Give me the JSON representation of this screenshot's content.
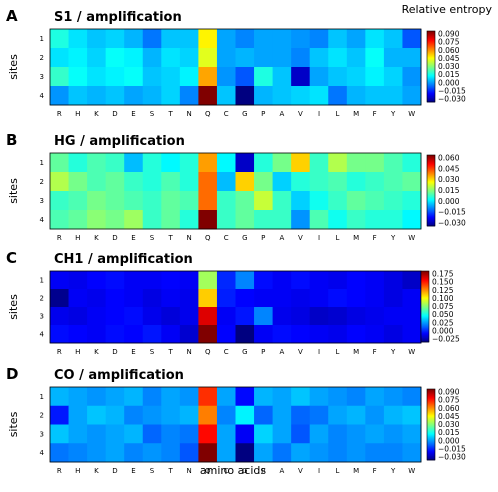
{
  "header": {
    "colorbar_title": "Relative entropy"
  },
  "xlabel": "amino acids",
  "ylabel": "sites",
  "amino_acids": [
    "R",
    "H",
    "K",
    "D",
    "E",
    "S",
    "T",
    "N",
    "Q",
    "C",
    "G",
    "P",
    "A",
    "V",
    "I",
    "L",
    "M",
    "F",
    "Y",
    "W"
  ],
  "sites": [
    "1",
    "2",
    "3",
    "4"
  ],
  "chart_data": [
    {
      "type": "heatmap",
      "letter": "A",
      "title": "S1 / amplification",
      "x": [
        "R",
        "H",
        "K",
        "D",
        "E",
        "S",
        "T",
        "N",
        "Q",
        "C",
        "G",
        "P",
        "A",
        "V",
        "I",
        "L",
        "M",
        "F",
        "Y",
        "W"
      ],
      "y": [
        "1",
        "2",
        "3",
        "4"
      ],
      "vmin": -0.037,
      "vmax": 0.092,
      "colorbar_ticks": [
        "0.090",
        "0.075",
        "0.060",
        "0.045",
        "0.030",
        "0.015",
        "0.000",
        "−0.015",
        "−0.030"
      ],
      "values": [
        [
          0.015,
          0.008,
          0.004,
          0.006,
          0.002,
          -0.006,
          0.004,
          0.004,
          0.045,
          0.0,
          -0.004,
          0.0,
          0.0,
          -0.002,
          -0.004,
          0.004,
          0.0,
          0.008,
          0.004,
          -0.01
        ],
        [
          0.008,
          0.01,
          0.006,
          0.012,
          0.01,
          0.002,
          0.008,
          0.006,
          0.04,
          0.0,
          0.002,
          0.0,
          0.0,
          -0.004,
          0.004,
          0.008,
          0.004,
          0.012,
          0.002,
          0.002
        ],
        [
          0.018,
          0.012,
          0.008,
          0.01,
          0.012,
          0.004,
          0.006,
          0.01,
          0.055,
          -0.002,
          -0.01,
          0.015,
          0.004,
          -0.028,
          0.0,
          0.004,
          0.006,
          0.01,
          0.006,
          -0.002
        ],
        [
          -0.002,
          0.004,
          0.002,
          0.004,
          0.0,
          0.002,
          0.006,
          -0.004,
          0.092,
          0.004,
          -0.037,
          0.002,
          0.004,
          0.006,
          0.008,
          -0.006,
          0.002,
          0.004,
          0.004,
          0.0
        ]
      ]
    },
    {
      "type": "heatmap",
      "letter": "B",
      "title": "HG / amplification",
      "x": [
        "R",
        "H",
        "K",
        "D",
        "E",
        "S",
        "T",
        "N",
        "Q",
        "C",
        "G",
        "P",
        "A",
        "V",
        "I",
        "L",
        "M",
        "F",
        "Y",
        "W"
      ],
      "y": [
        "1",
        "2",
        "3",
        "4"
      ],
      "vmin": -0.037,
      "vmax": 0.063,
      "colorbar_ticks": [
        "0.060",
        "0.045",
        "0.030",
        "0.015",
        "0.000",
        "−0.015",
        "−0.030"
      ],
      "values": [
        [
          0.01,
          0.004,
          0.008,
          0.006,
          -0.006,
          0.004,
          0.0,
          0.004,
          0.035,
          0.0,
          -0.03,
          0.004,
          0.012,
          0.03,
          0.006,
          0.018,
          0.012,
          0.012,
          0.008,
          0.004
        ],
        [
          0.018,
          0.012,
          0.008,
          0.01,
          0.006,
          0.004,
          0.008,
          0.004,
          0.04,
          -0.006,
          0.03,
          0.012,
          -0.004,
          0.004,
          0.006,
          0.008,
          0.004,
          0.006,
          0.008,
          0.01
        ],
        [
          0.006,
          0.008,
          0.012,
          0.01,
          0.008,
          0.006,
          0.01,
          0.008,
          0.04,
          0.006,
          0.01,
          0.02,
          0.006,
          -0.004,
          0.002,
          0.006,
          0.01,
          0.008,
          0.006,
          0.004
        ],
        [
          0.008,
          0.01,
          0.014,
          0.012,
          0.016,
          0.006,
          0.01,
          0.004,
          0.063,
          0.006,
          0.01,
          0.006,
          0.006,
          -0.01,
          0.008,
          0.002,
          0.006,
          0.004,
          0.004,
          0.0
        ]
      ]
    },
    {
      "type": "heatmap",
      "letter": "C",
      "title": "CH1 / amplification",
      "x": [
        "R",
        "H",
        "K",
        "D",
        "E",
        "S",
        "T",
        "N",
        "Q",
        "C",
        "G",
        "P",
        "A",
        "V",
        "I",
        "L",
        "M",
        "F",
        "Y",
        "W"
      ],
      "y": [
        "1",
        "2",
        "3",
        "4"
      ],
      "vmin": -0.035,
      "vmax": 0.18,
      "colorbar_ticks": [
        "0.175",
        "0.150",
        "0.125",
        "0.100",
        "0.075",
        "0.050",
        "0.025",
        "0.000",
        "−0.025"
      ],
      "values": [
        [
          -0.01,
          -0.012,
          -0.008,
          -0.006,
          -0.01,
          -0.01,
          -0.008,
          -0.01,
          0.08,
          0.0,
          0.02,
          -0.006,
          -0.01,
          -0.006,
          -0.01,
          -0.012,
          -0.008,
          -0.01,
          -0.014,
          -0.02
        ],
        [
          -0.032,
          -0.01,
          -0.012,
          -0.008,
          -0.01,
          -0.014,
          -0.01,
          -0.012,
          0.11,
          -0.002,
          -0.008,
          -0.01,
          -0.01,
          -0.012,
          -0.01,
          -0.006,
          -0.008,
          -0.01,
          -0.014,
          -0.01
        ],
        [
          -0.012,
          -0.014,
          -0.01,
          -0.008,
          -0.006,
          -0.012,
          -0.016,
          -0.012,
          0.16,
          -0.01,
          -0.004,
          0.02,
          -0.012,
          -0.014,
          -0.02,
          -0.018,
          -0.014,
          -0.012,
          -0.01,
          -0.01
        ],
        [
          -0.006,
          -0.008,
          -0.01,
          -0.006,
          -0.008,
          -0.004,
          -0.01,
          -0.018,
          0.18,
          -0.008,
          -0.035,
          -0.01,
          -0.006,
          -0.008,
          -0.01,
          -0.012,
          -0.008,
          -0.01,
          -0.014,
          -0.01
        ]
      ]
    },
    {
      "type": "heatmap",
      "letter": "D",
      "title": "CO / amplification",
      "x": [
        "R",
        "H",
        "K",
        "D",
        "E",
        "S",
        "T",
        "N",
        "Q",
        "C",
        "G",
        "P",
        "A",
        "V",
        "I",
        "L",
        "M",
        "F",
        "Y",
        "W"
      ],
      "y": [
        "1",
        "2",
        "3",
        "4"
      ],
      "vmin": -0.037,
      "vmax": 0.092,
      "colorbar_ticks": [
        "0.090",
        "0.075",
        "0.060",
        "0.045",
        "0.030",
        "0.015",
        "0.000",
        "−0.015",
        "−0.030"
      ],
      "values": [
        [
          0.002,
          0.0,
          -0.002,
          0.0,
          0.002,
          -0.004,
          0.0,
          -0.002,
          0.07,
          0.0,
          -0.02,
          0.002,
          0.0,
          0.004,
          0.0,
          -0.002,
          -0.004,
          0.0,
          -0.002,
          -0.004
        ],
        [
          -0.018,
          0.0,
          0.004,
          0.002,
          -0.004,
          -0.002,
          0.0,
          0.002,
          0.06,
          -0.004,
          0.01,
          -0.008,
          0.0,
          -0.008,
          -0.006,
          0.0,
          0.002,
          -0.002,
          0.002,
          0.004
        ],
        [
          0.004,
          0.0,
          -0.002,
          0.0,
          0.002,
          -0.008,
          -0.004,
          -0.006,
          0.075,
          0.0,
          -0.022,
          0.006,
          0.0,
          -0.01,
          0.0,
          -0.004,
          -0.002,
          0.0,
          -0.002,
          0.0
        ],
        [
          -0.006,
          -0.004,
          -0.002,
          0.0,
          -0.004,
          -0.002,
          -0.004,
          -0.01,
          0.092,
          0.0,
          -0.037,
          0.0,
          -0.006,
          0.0,
          -0.002,
          -0.004,
          -0.002,
          -0.004,
          -0.004,
          -0.002
        ]
      ]
    }
  ]
}
